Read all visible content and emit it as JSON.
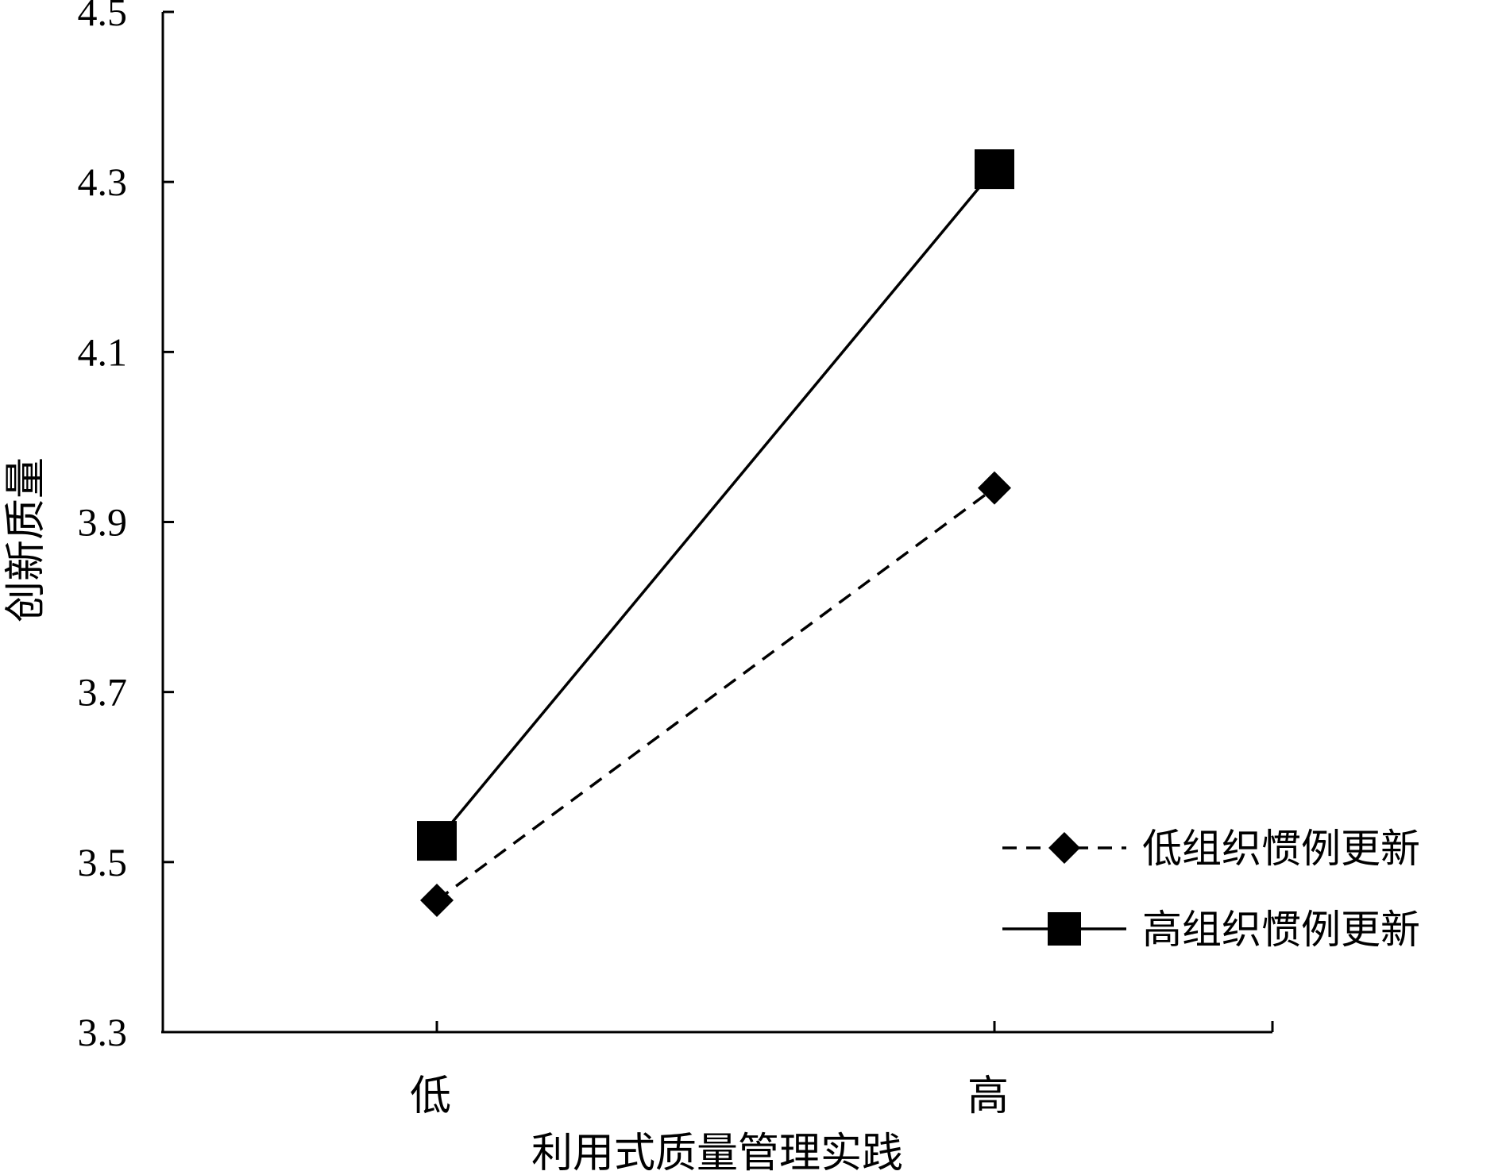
{
  "chart_data": {
    "type": "line",
    "categories": [
      "低",
      "高"
    ],
    "series": [
      {
        "name": "低组织惯例更新",
        "values": [
          3.455,
          3.94
        ],
        "line_style": "dashed",
        "marker": "diamond"
      },
      {
        "name": "高组织惯例更新",
        "values": [
          3.525,
          4.315
        ],
        "line_style": "solid",
        "marker": "square"
      }
    ],
    "title": "",
    "xlabel": "利用式质量管理实践",
    "ylabel": "创新质量",
    "ylim": [
      3.3,
      4.5
    ],
    "yticks": [
      "3.3",
      "3.5",
      "3.7",
      "3.9",
      "4.1",
      "4.3",
      "4.5"
    ],
    "grid": false,
    "legend_position": "right",
    "colors": {
      "series": "#000000",
      "background": "#ffffff"
    }
  }
}
